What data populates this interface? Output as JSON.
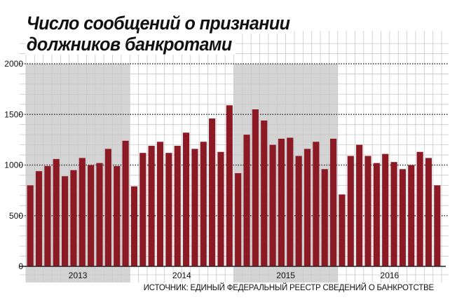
{
  "title_lines": [
    "Число сообщений о признании",
    "должников банкротами"
  ],
  "source": "ИСТОЧНИК: ЕДИНЫЙ ФЕДЕРАЛЬНЫЙ РЕЕСТР СВЕДЕНИЙ О БАНКРОТСТВЕ",
  "colors": {
    "bar": "#8b1a24",
    "shade": "#d4d4d4",
    "grid": "#c8c8c8",
    "text": "#111111"
  },
  "chart_data": {
    "type": "bar",
    "title": "Число сообщений о признании должников банкротами",
    "ylim": [
      0,
      2000
    ],
    "y_ticks": [
      "0",
      "500",
      "1000",
      "1500",
      "2000"
    ],
    "grid": true,
    "year_labels": [
      "2013",
      "2014",
      "2015",
      "2016"
    ],
    "year_start_index": [
      0,
      12,
      24,
      36
    ],
    "shaded_years": [
      "2013",
      "2015"
    ],
    "values": [
      800,
      940,
      990,
      1060,
      890,
      950,
      1070,
      1000,
      1020,
      1160,
      990,
      1240,
      790,
      1120,
      1190,
      1230,
      1120,
      1190,
      1320,
      1160,
      1230,
      1460,
      1130,
      1590,
      920,
      1300,
      1550,
      1440,
      1200,
      1260,
      1270,
      1090,
      1160,
      1230,
      960,
      1260,
      710,
      1090,
      1200,
      1090,
      1020,
      1110,
      1030,
      960,
      1000,
      1130,
      1070,
      800
    ]
  }
}
